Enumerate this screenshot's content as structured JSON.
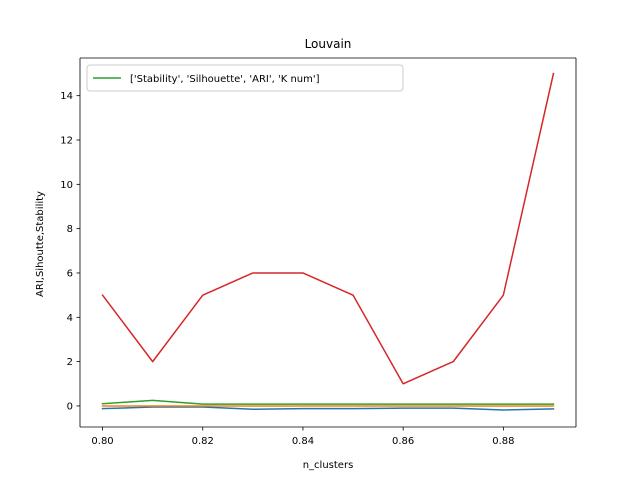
{
  "chart_data": {
    "type": "line",
    "title": "Louvain",
    "xlabel": "n_clusters",
    "ylabel": "ARI,Sihoutte,Stability",
    "x": [
      0.8,
      0.81,
      0.82,
      0.83,
      0.84,
      0.85,
      0.86,
      0.87,
      0.88,
      0.89
    ],
    "xlim": [
      0.7955,
      0.8945
    ],
    "ylim": [
      -0.95,
      15.7
    ],
    "xticks": [
      "0.80",
      "0.82",
      "0.84",
      "0.86",
      "0.88"
    ],
    "xtick_values": [
      0.8,
      0.82,
      0.84,
      0.86,
      0.88
    ],
    "yticks": [
      "0",
      "2",
      "4",
      "6",
      "8",
      "10",
      "12",
      "14"
    ],
    "ytick_values": [
      0,
      2,
      4,
      6,
      8,
      10,
      12,
      14
    ],
    "grid": false,
    "legend_position": "top-left",
    "legend_label": "['Stability', 'Silhouette', 'ARI', 'K num']",
    "series": [
      {
        "color": "#1f77b4",
        "values": [
          -0.12,
          -0.05,
          -0.05,
          -0.15,
          -0.12,
          -0.12,
          -0.1,
          -0.1,
          -0.18,
          -0.13
        ]
      },
      {
        "color": "#ff7f0e",
        "values": [
          0.0,
          0.0,
          0.0,
          0.0,
          0.0,
          0.0,
          0.0,
          0.0,
          0.0,
          0.0
        ]
      },
      {
        "color": "#2ca02c",
        "values": [
          0.1,
          0.25,
          0.08,
          0.08,
          0.08,
          0.08,
          0.08,
          0.08,
          0.08,
          0.08
        ]
      },
      {
        "color": "#d62728",
        "values": [
          5,
          2,
          5,
          6,
          6,
          5,
          1,
          2,
          5,
          15
        ]
      }
    ]
  }
}
